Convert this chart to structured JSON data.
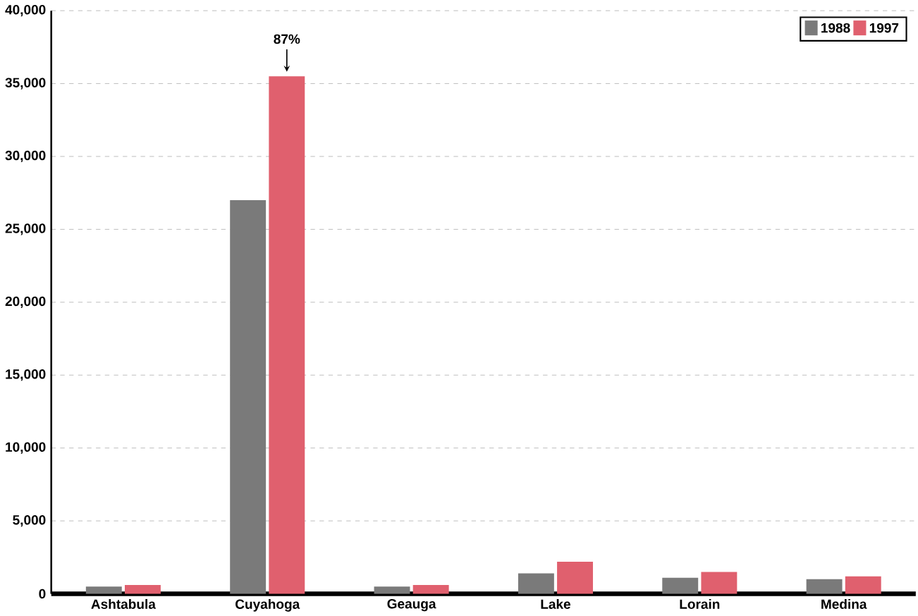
{
  "chart_data": {
    "type": "bar",
    "categories": [
      "Ashtabula",
      "Cuyahoga",
      "Geauga",
      "Lake",
      "Lorain",
      "Medina"
    ],
    "series": [
      {
        "name": "1988",
        "color": "#7a7a7a",
        "values": [
          500,
          27000,
          500,
          1400,
          1100,
          1000
        ]
      },
      {
        "name": "1997",
        "color": "#e0606e",
        "values": [
          600,
          35500,
          600,
          2200,
          1500,
          1200
        ]
      }
    ],
    "ylim": [
      0,
      40000
    ],
    "yticks": [
      {
        "value": 0,
        "label": "0"
      },
      {
        "value": 5000,
        "label": "5,000"
      },
      {
        "value": 10000,
        "label": "10,000"
      },
      {
        "value": 15000,
        "label": "15,000"
      },
      {
        "value": 20000,
        "label": "20,000"
      },
      {
        "value": 25000,
        "label": "25,000"
      },
      {
        "value": 30000,
        "label": "30,000"
      },
      {
        "value": 35000,
        "label": "35,000"
      },
      {
        "value": 40000,
        "label": "40,000"
      }
    ],
    "annotations": [
      {
        "text": "87%",
        "x": "Cuyahoga",
        "y": 35500
      }
    ],
    "grid": "y",
    "legend": "top right"
  }
}
